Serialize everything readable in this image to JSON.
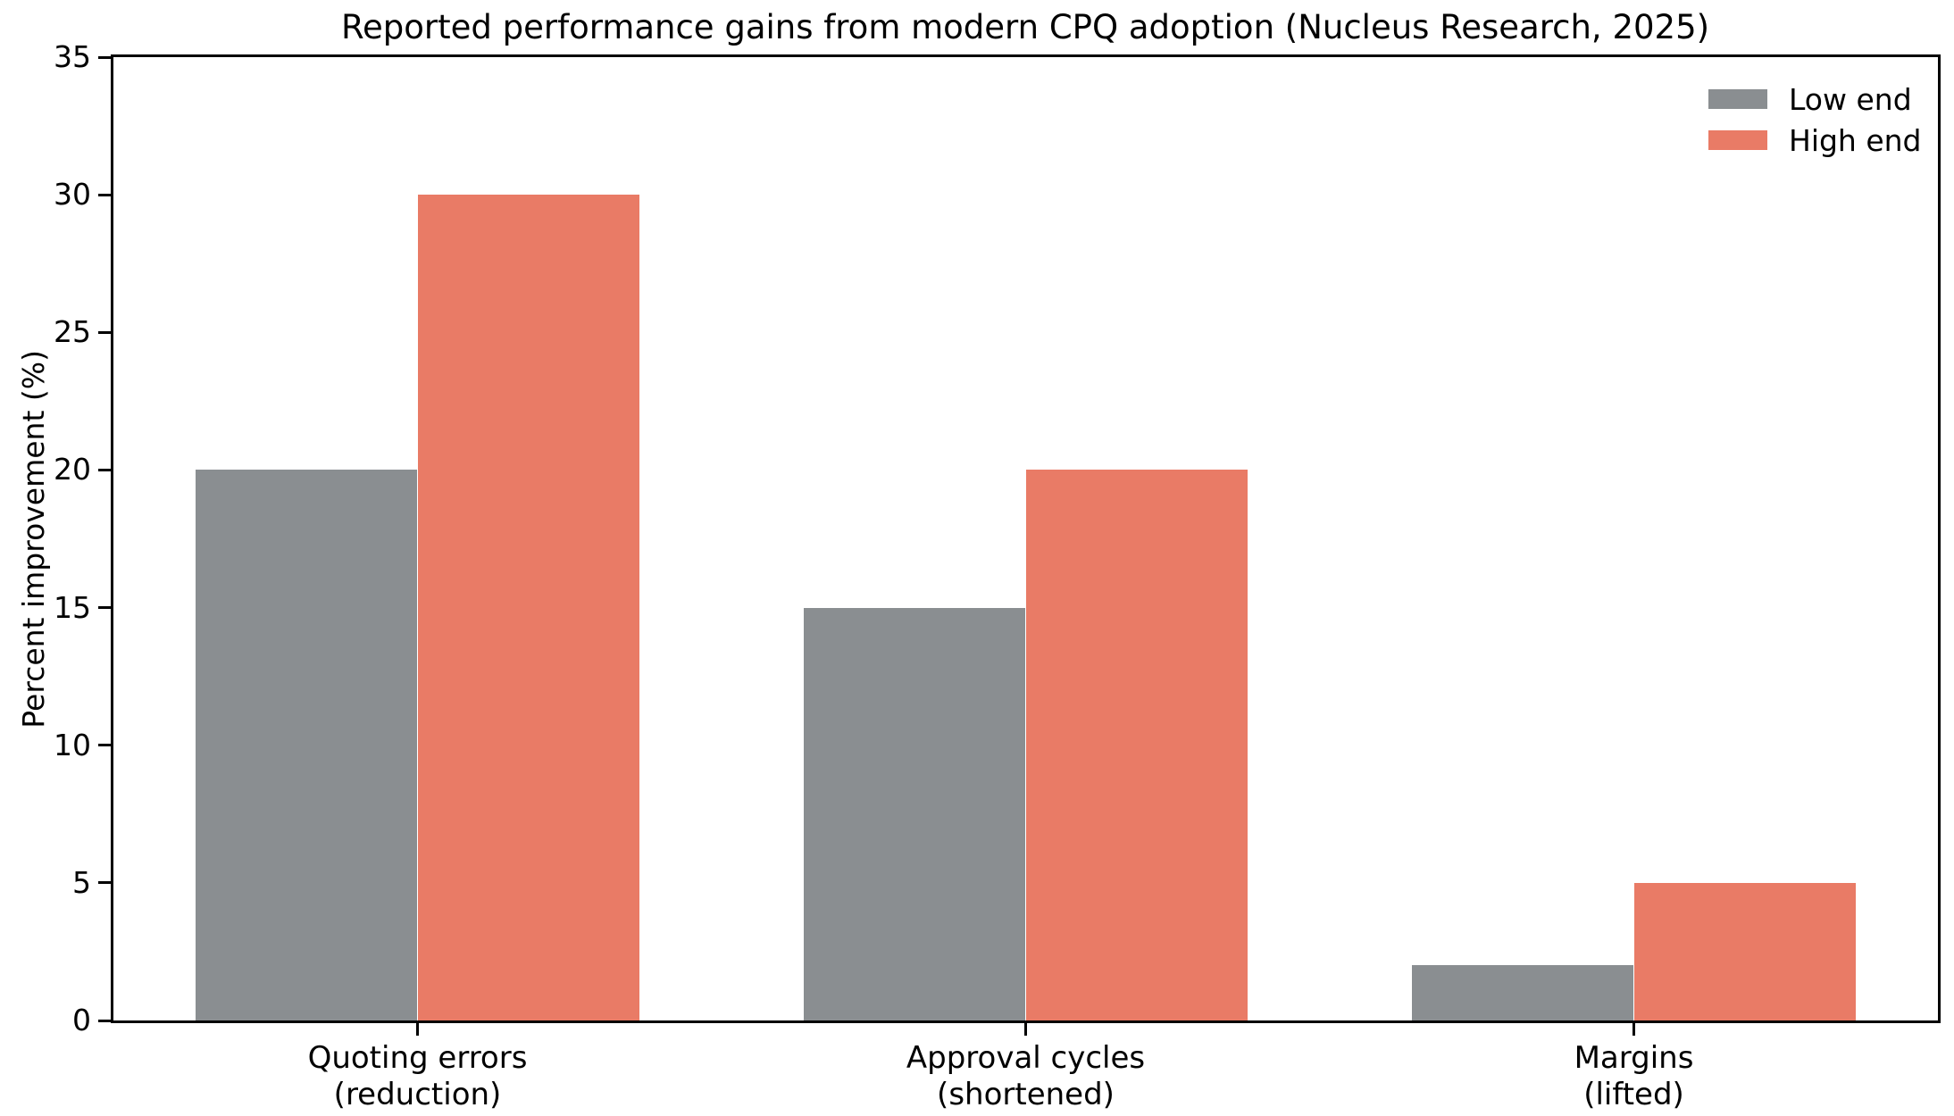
{
  "chart_data": {
    "type": "bar",
    "title": "Reported performance gains from modern CPQ adoption (Nucleus Research, 2025)",
    "ylabel": "Percent improvement (%)",
    "xlabel": "",
    "ylim": [
      0,
      35
    ],
    "yticks": [
      0,
      5,
      10,
      15,
      20,
      25,
      30,
      35
    ],
    "grid": false,
    "background_color": "#ffffff",
    "axis_color": "#000000",
    "legend": {
      "position": "upper right",
      "frame": false,
      "entries": [
        "Low end",
        "High end"
      ]
    },
    "categories": [
      {
        "label_lines": [
          "Quoting errors",
          "(reduction)"
        ]
      },
      {
        "label_lines": [
          "Approval cycles",
          "(shortened)"
        ]
      },
      {
        "label_lines": [
          "Margins",
          "(lifted)"
        ]
      }
    ],
    "series": [
      {
        "name": "Low end",
        "color": "#8a8e91",
        "values": [
          20,
          15,
          2
        ]
      },
      {
        "name": "High end",
        "color": "#e97b66",
        "values": [
          30,
          20,
          5
        ]
      }
    ],
    "bar_width_fraction": 0.365
  }
}
